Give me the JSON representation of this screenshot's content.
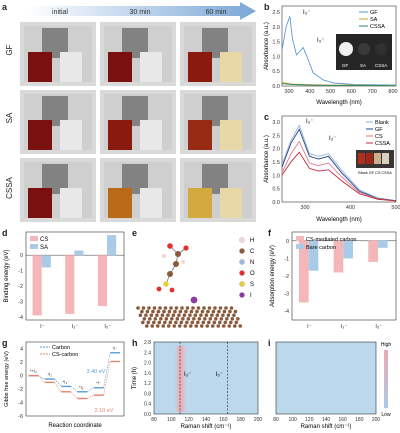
{
  "panels": {
    "a": {
      "letter": "a",
      "time_labels": [
        "initial",
        "30 min",
        "60 min"
      ],
      "row_labels": [
        "GF",
        "SA",
        "CSSA"
      ]
    },
    "b": {
      "letter": "b",
      "xlabel": "Wavelength (nm)",
      "ylabel": "Absorbance (a.u.)",
      "legend": [
        "GF",
        "SA",
        "CSSA"
      ],
      "peak1": "I₃⁻",
      "peak2": "I₃⁻",
      "inset_labels": [
        "GF",
        "SA",
        "CSSA"
      ],
      "xticks": [
        "300",
        "400",
        "500",
        "600",
        "700",
        "800"
      ],
      "yticks": [
        "0.0",
        "0.5",
        "1.0",
        "1.5",
        "2.0",
        "2.5"
      ],
      "colors": {
        "GF": "#5b9bd5",
        "SA": "#c9a227",
        "CSSA": "#2e8b57"
      }
    },
    "c": {
      "letter": "c",
      "xlabel": "Wavelength (nm)",
      "ylabel": "Absorbance (a.u.)",
      "legend": [
        "Blank",
        "GF",
        "CS",
        "CSSA"
      ],
      "peak1": "I₃⁻",
      "peak2": "I₃⁻",
      "inset_caption": "Blank GF CS CSSA",
      "xticks": [
        "300",
        "400",
        "500"
      ],
      "yticks": [
        "0.0",
        "0.5",
        "1.0",
        "1.5",
        "2.0",
        "2.5",
        "3.0"
      ],
      "colors": {
        "Blank": "#8fb3d9",
        "GF": "#1f3f8f",
        "CS": "#e07a8a",
        "CSSA": "#c0283c"
      }
    },
    "d": {
      "letter": "d",
      "ylabel": "Binding energy (eV)",
      "legend": [
        "CS",
        "SA"
      ],
      "xticks": [
        "I⁻",
        "I₃⁻",
        "I₅⁻"
      ],
      "yticks": [
        "0",
        "-1",
        "-2",
        "-3",
        "-4"
      ],
      "colors": {
        "CS": "#f4b6b8",
        "SA": "#a9cbe8"
      }
    },
    "e": {
      "letter": "e",
      "legend": [
        "H",
        "C",
        "N",
        "O",
        "S",
        "I"
      ],
      "colors": {
        "H": "#f2d7d5",
        "C": "#8b5a3c",
        "N": "#9fb8e0",
        "O": "#e03030",
        "S": "#e8d03a",
        "I": "#8e3ba8"
      }
    },
    "f": {
      "letter": "f",
      "ylabel": "Adsorption energy (eV)",
      "legend": [
        "CS-mediated carbon",
        "Bare carbon"
      ],
      "xticks": [
        "I⁻",
        "I₃⁻",
        "I₅⁻"
      ],
      "yticks": [
        "0",
        "-1",
        "-2",
        "-3",
        "-4"
      ],
      "colors": {
        "CS-mediated carbon": "#f4b6b8",
        "Bare carbon": "#a9cbe8"
      }
    },
    "g": {
      "letter": "g",
      "ylabel": "Gibbs free energy (eV)",
      "xlabel": "Reaction coordinate",
      "legend": [
        "Carbon",
        "CS-carbon"
      ],
      "annotations": [
        "3.40 eV",
        "2.10 eV"
      ],
      "states": [
        "*+I₂",
        "*I₂",
        "*I₃⁻",
        "*I₅⁻",
        "*I⁻",
        "*I⁻"
      ],
      "yticks": [
        "4",
        "2",
        "0",
        "-2",
        "-4",
        "-6"
      ],
      "colors": {
        "Carbon": "#5b9bd5",
        "CS-carbon": "#e8836e"
      }
    },
    "h": {
      "letter": "h",
      "ylabel": "Time (h)",
      "xlabel": "Raman shift (cm⁻¹)",
      "peak1": "I₃⁻",
      "peak2": "I₅⁻",
      "xticks": [
        "80",
        "100",
        "120",
        "140",
        "160",
        "180",
        "200"
      ],
      "yticks": [
        "0.0",
        "0.4",
        "0.8",
        "1.2",
        "1.6",
        "2.0",
        "2.4",
        "2.8"
      ]
    },
    "i": {
      "letter": "i",
      "xlabel": "Raman shift (cm⁻¹)",
      "xticks": [
        "80",
        "100",
        "120",
        "140",
        "160",
        "180",
        "200"
      ],
      "colorbar": [
        "High",
        "Low"
      ]
    }
  },
  "chart_data": [
    {
      "type": "line",
      "title": "",
      "xlabel": "Wavelength (nm)",
      "ylabel": "Absorbance (a.u.)",
      "xlim": [
        250,
        800
      ],
      "ylim": [
        0,
        2.7
      ],
      "series": [
        {
          "name": "GF",
          "x": [
            250,
            270,
            288,
            300,
            320,
            340,
            352,
            370,
            400,
            450,
            500,
            600,
            700,
            800
          ],
          "y": [
            1.2,
            2.0,
            2.35,
            1.6,
            1.05,
            1.2,
            1.3,
            1.0,
            0.45,
            0.2,
            0.1,
            0.05,
            0.04,
            0.03
          ]
        },
        {
          "name": "SA",
          "x": [
            250,
            300,
            400,
            500,
            600,
            700,
            800
          ],
          "y": [
            0.12,
            0.06,
            0.04,
            0.03,
            0.03,
            0.02,
            0.02
          ]
        },
        {
          "name": "CSSA",
          "x": [
            250,
            300,
            400,
            500,
            600,
            700,
            800
          ],
          "y": [
            0.08,
            0.05,
            0.03,
            0.02,
            0.02,
            0.02,
            0.01
          ]
        }
      ]
    },
    {
      "type": "line",
      "title": "",
      "xlabel": "Wavelength (nm)",
      "ylabel": "Absorbance (a.u.)",
      "xlim": [
        250,
        500
      ],
      "ylim": [
        0,
        3.2
      ],
      "series": [
        {
          "name": "Blank",
          "x": [
            250,
            270,
            288,
            310,
            330,
            352,
            380,
            420,
            460,
            500
          ],
          "y": [
            1.4,
            2.3,
            2.85,
            1.8,
            1.7,
            1.8,
            1.2,
            0.45,
            0.15,
            0.05
          ]
        },
        {
          "name": "GF",
          "x": [
            250,
            270,
            288,
            310,
            330,
            352,
            380,
            420,
            460,
            500
          ],
          "y": [
            1.3,
            2.2,
            2.7,
            1.7,
            1.6,
            1.7,
            1.1,
            0.4,
            0.13,
            0.05
          ]
        },
        {
          "name": "CS",
          "x": [
            250,
            270,
            288,
            310,
            330,
            352,
            380,
            420,
            460,
            500
          ],
          "y": [
            1.1,
            1.8,
            2.25,
            1.45,
            1.35,
            1.45,
            0.95,
            0.35,
            0.12,
            0.04
          ]
        },
        {
          "name": "CSSA",
          "x": [
            250,
            270,
            288,
            310,
            330,
            352,
            380,
            420,
            460,
            500
          ],
          "y": [
            1.0,
            1.5,
            1.85,
            1.25,
            1.15,
            1.2,
            0.8,
            0.3,
            0.1,
            0.04
          ]
        }
      ]
    },
    {
      "type": "bar",
      "title": "",
      "ylabel": "Binding energy (eV)",
      "ylim": [
        -4.2,
        1.5
      ],
      "categories": [
        "I⁻",
        "I₃⁻",
        "I₅⁻"
      ],
      "series": [
        {
          "name": "CS",
          "values": [
            -3.9,
            -3.8,
            -3.3
          ]
        },
        {
          "name": "SA",
          "values": [
            -0.8,
            0.3,
            1.3
          ]
        }
      ]
    },
    {
      "type": "bar",
      "title": "",
      "ylabel": "Adsorption energy (eV)",
      "ylim": [
        -4.5,
        0.5
      ],
      "categories": [
        "I⁻",
        "I₃⁻",
        "I₅⁻"
      ],
      "series": [
        {
          "name": "CS-mediated carbon",
          "values": [
            -3.5,
            -1.8,
            -1.2
          ]
        },
        {
          "name": "Bare carbon",
          "values": [
            -1.7,
            -1.0,
            -0.4
          ]
        }
      ]
    },
    {
      "type": "line",
      "title": "",
      "xlabel": "Reaction coordinate",
      "ylabel": "Gibbs free energy (eV)",
      "ylim": [
        -6,
        5
      ],
      "series": [
        {
          "name": "Carbon",
          "values": [
            0,
            -0.5,
            -1.6,
            -2.4,
            -1.8,
            3.4
          ]
        },
        {
          "name": "CS-carbon",
          "values": [
            0,
            -1.0,
            -2.4,
            -3.4,
            -2.9,
            2.1
          ]
        }
      ]
    },
    {
      "type": "heatmap",
      "title": "",
      "xlabel": "Raman shift (cm⁻¹)",
      "ylabel": "Time (h)",
      "xlim": [
        80,
        200
      ],
      "ylim": [
        0,
        2.8
      ],
      "peaks": [
        {
          "label": "I₃⁻",
          "x": 110
        },
        {
          "label": "I₅⁻",
          "x": 165
        }
      ]
    },
    {
      "type": "heatmap",
      "title": "",
      "xlabel": "Raman shift (cm⁻¹)",
      "xlim": [
        80,
        200
      ],
      "ylim": [
        0,
        2.8
      ]
    }
  ]
}
